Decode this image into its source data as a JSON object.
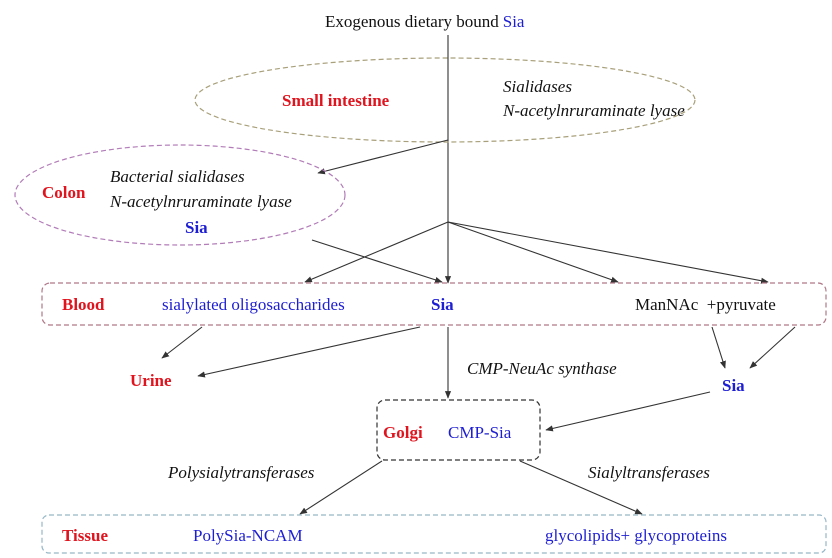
{
  "title": {
    "prefix": "Exogenous dietary bound",
    "sia": "Sia"
  },
  "small_intestine": {
    "label": "Small intestine",
    "enzyme1": "Sialidases",
    "enzyme2": "N-acetylnruraminate lyase",
    "border_color": "#a8a07a"
  },
  "colon": {
    "label": "Colon",
    "enzyme1": "Bacterial sialidases",
    "enzyme2": "N-acetylnruraminate lyase",
    "product": "Sia",
    "border_color": "#b27cb8"
  },
  "blood": {
    "label": "Blood",
    "item1": "sialylated oligosaccharides",
    "item2": "Sia",
    "item3": "ManNAc  +pyruvate",
    "border_color": "#b07888"
  },
  "urine": {
    "label": "Urine"
  },
  "cmp_synthase": "CMP-NeuAc synthase",
  "right_sia": "Sia",
  "golgi": {
    "label": "Golgi",
    "item": "CMP-Sia",
    "border_color": "#333333"
  },
  "polysialytransferases": "Polysialytransferases",
  "sialyltransferases": "Sialyltransferases",
  "tissue": {
    "label": "Tissue",
    "item1": "PolySia-NCAM",
    "item2": "glycolipids+ glycoproteins",
    "border_color": "#98b8c8"
  },
  "colors": {
    "organ_label": "#e0141e",
    "molecule": "#1e1ed2"
  }
}
